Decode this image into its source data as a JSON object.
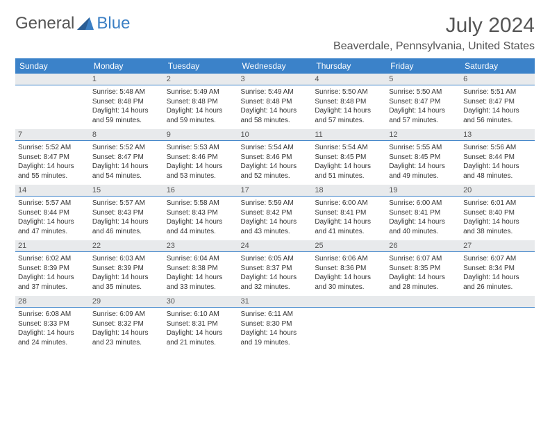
{
  "logo": {
    "word1": "General",
    "word2": "Blue"
  },
  "title": "July 2024",
  "location": "Beaverdale, Pennsylvania, United States",
  "colors": {
    "header_bg": "#3b82c9",
    "header_text": "#ffffff",
    "daynum_bg": "#e8eaec",
    "text": "#333333",
    "accent": "#3b7fc4"
  },
  "dayHeaders": [
    "Sunday",
    "Monday",
    "Tuesday",
    "Wednesday",
    "Thursday",
    "Friday",
    "Saturday"
  ],
  "weeks": [
    [
      null,
      {
        "n": "1",
        "sr": "5:48 AM",
        "ss": "8:48 PM",
        "dl": "14 hours and 59 minutes."
      },
      {
        "n": "2",
        "sr": "5:49 AM",
        "ss": "8:48 PM",
        "dl": "14 hours and 59 minutes."
      },
      {
        "n": "3",
        "sr": "5:49 AM",
        "ss": "8:48 PM",
        "dl": "14 hours and 58 minutes."
      },
      {
        "n": "4",
        "sr": "5:50 AM",
        "ss": "8:48 PM",
        "dl": "14 hours and 57 minutes."
      },
      {
        "n": "5",
        "sr": "5:50 AM",
        "ss": "8:47 PM",
        "dl": "14 hours and 57 minutes."
      },
      {
        "n": "6",
        "sr": "5:51 AM",
        "ss": "8:47 PM",
        "dl": "14 hours and 56 minutes."
      }
    ],
    [
      {
        "n": "7",
        "sr": "5:52 AM",
        "ss": "8:47 PM",
        "dl": "14 hours and 55 minutes."
      },
      {
        "n": "8",
        "sr": "5:52 AM",
        "ss": "8:47 PM",
        "dl": "14 hours and 54 minutes."
      },
      {
        "n": "9",
        "sr": "5:53 AM",
        "ss": "8:46 PM",
        "dl": "14 hours and 53 minutes."
      },
      {
        "n": "10",
        "sr": "5:54 AM",
        "ss": "8:46 PM",
        "dl": "14 hours and 52 minutes."
      },
      {
        "n": "11",
        "sr": "5:54 AM",
        "ss": "8:45 PM",
        "dl": "14 hours and 51 minutes."
      },
      {
        "n": "12",
        "sr": "5:55 AM",
        "ss": "8:45 PM",
        "dl": "14 hours and 49 minutes."
      },
      {
        "n": "13",
        "sr": "5:56 AM",
        "ss": "8:44 PM",
        "dl": "14 hours and 48 minutes."
      }
    ],
    [
      {
        "n": "14",
        "sr": "5:57 AM",
        "ss": "8:44 PM",
        "dl": "14 hours and 47 minutes."
      },
      {
        "n": "15",
        "sr": "5:57 AM",
        "ss": "8:43 PM",
        "dl": "14 hours and 46 minutes."
      },
      {
        "n": "16",
        "sr": "5:58 AM",
        "ss": "8:43 PM",
        "dl": "14 hours and 44 minutes."
      },
      {
        "n": "17",
        "sr": "5:59 AM",
        "ss": "8:42 PM",
        "dl": "14 hours and 43 minutes."
      },
      {
        "n": "18",
        "sr": "6:00 AM",
        "ss": "8:41 PM",
        "dl": "14 hours and 41 minutes."
      },
      {
        "n": "19",
        "sr": "6:00 AM",
        "ss": "8:41 PM",
        "dl": "14 hours and 40 minutes."
      },
      {
        "n": "20",
        "sr": "6:01 AM",
        "ss": "8:40 PM",
        "dl": "14 hours and 38 minutes."
      }
    ],
    [
      {
        "n": "21",
        "sr": "6:02 AM",
        "ss": "8:39 PM",
        "dl": "14 hours and 37 minutes."
      },
      {
        "n": "22",
        "sr": "6:03 AM",
        "ss": "8:39 PM",
        "dl": "14 hours and 35 minutes."
      },
      {
        "n": "23",
        "sr": "6:04 AM",
        "ss": "8:38 PM",
        "dl": "14 hours and 33 minutes."
      },
      {
        "n": "24",
        "sr": "6:05 AM",
        "ss": "8:37 PM",
        "dl": "14 hours and 32 minutes."
      },
      {
        "n": "25",
        "sr": "6:06 AM",
        "ss": "8:36 PM",
        "dl": "14 hours and 30 minutes."
      },
      {
        "n": "26",
        "sr": "6:07 AM",
        "ss": "8:35 PM",
        "dl": "14 hours and 28 minutes."
      },
      {
        "n": "27",
        "sr": "6:07 AM",
        "ss": "8:34 PM",
        "dl": "14 hours and 26 minutes."
      }
    ],
    [
      {
        "n": "28",
        "sr": "6:08 AM",
        "ss": "8:33 PM",
        "dl": "14 hours and 24 minutes."
      },
      {
        "n": "29",
        "sr": "6:09 AM",
        "ss": "8:32 PM",
        "dl": "14 hours and 23 minutes."
      },
      {
        "n": "30",
        "sr": "6:10 AM",
        "ss": "8:31 PM",
        "dl": "14 hours and 21 minutes."
      },
      {
        "n": "31",
        "sr": "6:11 AM",
        "ss": "8:30 PM",
        "dl": "14 hours and 19 minutes."
      },
      null,
      null,
      null
    ]
  ],
  "labels": {
    "sunrise": "Sunrise:",
    "sunset": "Sunset:",
    "daylight": "Daylight:"
  }
}
